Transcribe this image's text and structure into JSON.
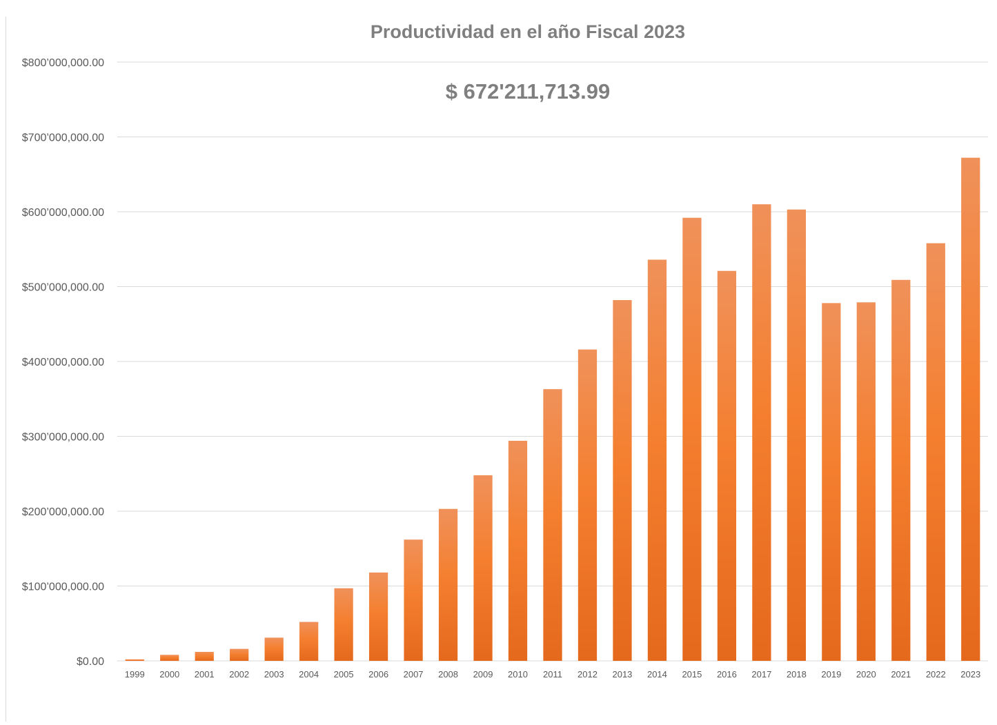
{
  "chart_data": {
    "type": "bar",
    "title": "Productividad en el año Fiscal 2023",
    "annotation": "$ 672'211,713.99",
    "xlabel": "",
    "ylabel": "",
    "ylim": [
      0,
      800000000
    ],
    "grid": true,
    "legend": "none",
    "bar_color": "#ED7D31",
    "y_ticks": [
      {
        "value": 0,
        "label": "$0.00"
      },
      {
        "value": 100000000,
        "label": "$100’000,000.00"
      },
      {
        "value": 200000000,
        "label": "$200’000,000.00"
      },
      {
        "value": 300000000,
        "label": "$300’000,000.00"
      },
      {
        "value": 400000000,
        "label": "$400’000,000.00"
      },
      {
        "value": 500000000,
        "label": "$500’000,000.00"
      },
      {
        "value": 600000000,
        "label": "$600’000,000.00"
      },
      {
        "value": 700000000,
        "label": "$700’000,000.00"
      },
      {
        "value": 800000000,
        "label": "$800’000,000.00"
      }
    ],
    "categories": [
      "1999",
      "2000",
      "2001",
      "2002",
      "2003",
      "2004",
      "2005",
      "2006",
      "2007",
      "2008",
      "2009",
      "2010",
      "2011",
      "2012",
      "2013",
      "2014",
      "2015",
      "2016",
      "2017",
      "2018",
      "2019",
      "2020",
      "2021",
      "2022",
      "2023"
    ],
    "values": [
      2000000,
      8000000,
      12000000,
      16000000,
      31000000,
      52000000,
      97000000,
      118000000,
      162000000,
      203000000,
      248000000,
      294000000,
      363000000,
      416000000,
      482000000,
      536000000,
      592000000,
      521000000,
      610000000,
      603000000,
      478000000,
      479000000,
      509000000,
      558000000,
      672211713.99
    ]
  }
}
